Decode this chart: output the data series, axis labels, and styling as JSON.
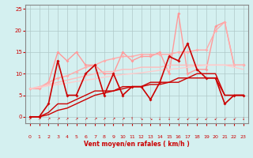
{
  "x": [
    0,
    1,
    2,
    3,
    4,
    5,
    6,
    7,
    8,
    9,
    10,
    11,
    12,
    13,
    14,
    15,
    16,
    17,
    18,
    19,
    20,
    21,
    22,
    23
  ],
  "lines": [
    {
      "color": "#ff9999",
      "linewidth": 1.0,
      "marker": "D",
      "markersize": 2.0,
      "y": [
        6.5,
        6.5,
        8,
        15,
        13,
        15,
        12,
        12,
        10,
        10,
        15,
        13,
        14,
        14,
        15,
        10,
        24,
        10,
        11,
        11,
        21,
        22,
        12,
        12
      ]
    },
    {
      "color": "#ffaaaa",
      "linewidth": 1.0,
      "marker": "D",
      "markersize": 2.0,
      "y": [
        6.5,
        6.8,
        8,
        9,
        9.5,
        10.5,
        11.5,
        12,
        13,
        13.5,
        14,
        14,
        14.5,
        14.5,
        14.5,
        14.5,
        15,
        15,
        15.5,
        15.5,
        20,
        22,
        12,
        12
      ]
    },
    {
      "color": "#ffbbbb",
      "linewidth": 1.0,
      "marker": null,
      "markersize": 0,
      "y": [
        6.5,
        7.0,
        7.5,
        8.0,
        8.5,
        9.0,
        9.5,
        10.0,
        10.5,
        10.5,
        11.0,
        11.0,
        11.5,
        11.5,
        11.5,
        12.0,
        12.0,
        12.0,
        12.0,
        12.0,
        12.0,
        12.0,
        12.0,
        12.0
      ]
    },
    {
      "color": "#ffcccc",
      "linewidth": 1.0,
      "marker": null,
      "markersize": 0,
      "y": [
        6.5,
        6.8,
        7.2,
        7.5,
        7.8,
        8.2,
        8.5,
        8.8,
        9.2,
        9.5,
        9.8,
        10.0,
        10.2,
        10.5,
        10.8,
        11.0,
        11.2,
        11.5,
        11.8,
        12.0,
        12.0,
        12.0,
        11.5,
        11.0
      ]
    },
    {
      "color": "#cc0000",
      "linewidth": 1.2,
      "marker": "D",
      "markersize": 2.0,
      "y": [
        0,
        0,
        3,
        13,
        5,
        5,
        10,
        12,
        5,
        10,
        5,
        7,
        7,
        4,
        8,
        14,
        13,
        17,
        11,
        9,
        9,
        3,
        5,
        5
      ]
    },
    {
      "color": "#cc0000",
      "linewidth": 1.0,
      "marker": null,
      "markersize": 0,
      "y": [
        0,
        0,
        1,
        3,
        3,
        4,
        5,
        6,
        6,
        6,
        7,
        7,
        7,
        8,
        8,
        8,
        9,
        9,
        10,
        10,
        10,
        5,
        5,
        5
      ]
    },
    {
      "color": "#cc0000",
      "linewidth": 1.0,
      "marker": null,
      "markersize": 0,
      "y": [
        0,
        0,
        0.5,
        1.5,
        2,
        3,
        4,
        5,
        5.5,
        6,
        6.5,
        7,
        7,
        7.5,
        7.5,
        8,
        8,
        9,
        9,
        9,
        9,
        5,
        5,
        5
      ]
    }
  ],
  "xlabel": "Vent moyen/en rafales ( km/h )",
  "xlim": [
    -0.5,
    23.5
  ],
  "ylim": [
    -1.5,
    26
  ],
  "yticks": [
    0,
    5,
    10,
    15,
    20,
    25
  ],
  "xticks": [
    0,
    1,
    2,
    3,
    4,
    5,
    6,
    7,
    8,
    9,
    10,
    11,
    12,
    13,
    14,
    15,
    16,
    17,
    18,
    19,
    20,
    21,
    22,
    23
  ],
  "bg_color": "#d4f0f0",
  "grid_color": "#b0c8c8",
  "xlabel_color": "#cc0000",
  "tick_color": "#cc0000",
  "axis_color": "#888888",
  "wind_dirs": [
    "NE",
    "NE",
    "NE",
    "NE",
    "NE",
    "NE",
    "NE",
    "NE",
    "NE",
    "NE",
    "NE",
    "N",
    "SE",
    "SE",
    "S",
    "S",
    "SW",
    "SW",
    "SW",
    "SW",
    "SW",
    "SW",
    "SW",
    "S"
  ]
}
